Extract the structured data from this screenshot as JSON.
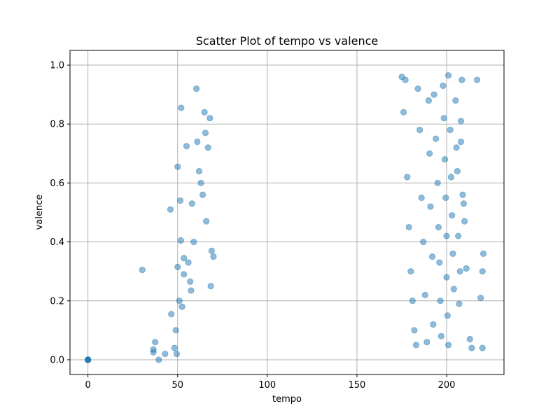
{
  "chart_data": {
    "type": "scatter",
    "title": "Scatter Plot of tempo vs valence",
    "xlabel": "tempo",
    "ylabel": "valence",
    "xlim": [
      -10,
      232
    ],
    "ylim": [
      -0.05,
      1.05
    ],
    "xticks": [
      0,
      50,
      100,
      150,
      200
    ],
    "yticks": [
      0.0,
      0.2,
      0.4,
      0.6,
      0.8,
      1.0
    ],
    "xtick_labels": [
      "0",
      "50",
      "100",
      "150",
      "200"
    ],
    "ytick_labels": [
      "0.0",
      "0.2",
      "0.4",
      "0.6",
      "0.8",
      "1.0"
    ],
    "grid": true,
    "marker_color": "#1f77b4",
    "marker_alpha": 0.5,
    "series": [
      {
        "points": [
          [
            0,
            0
          ],
          [
            0,
            0
          ],
          [
            0,
            0
          ],
          [
            0,
            0
          ],
          [
            0,
            0
          ],
          [
            30.3,
            0.305
          ],
          [
            36.5,
            0.025
          ],
          [
            36.5,
            0.035
          ],
          [
            37.5,
            0.06
          ],
          [
            39.5,
            0
          ],
          [
            43,
            0.02
          ],
          [
            46,
            0.51
          ],
          [
            46.5,
            0.155
          ],
          [
            48.3,
            0.04
          ],
          [
            49,
            0.1
          ],
          [
            49.5,
            0.02
          ],
          [
            50,
            0.315
          ],
          [
            50,
            0.655
          ],
          [
            51,
            0.2
          ],
          [
            51.5,
            0.54
          ],
          [
            51.8,
            0.405
          ],
          [
            52,
            0.855
          ],
          [
            52.5,
            0.18
          ],
          [
            53.5,
            0.29
          ],
          [
            53.5,
            0.345
          ],
          [
            55,
            0.725
          ],
          [
            56,
            0.33
          ],
          [
            57,
            0.265
          ],
          [
            57.5,
            0.235
          ],
          [
            58,
            0.53
          ],
          [
            59,
            0.4
          ],
          [
            60.5,
            0.92
          ],
          [
            61,
            0.74
          ],
          [
            62,
            0.64
          ],
          [
            63,
            0.6
          ],
          [
            64,
            0.56
          ],
          [
            65,
            0.84
          ],
          [
            65.5,
            0.77
          ],
          [
            66,
            0.47
          ],
          [
            67,
            0.72
          ],
          [
            68,
            0.82
          ],
          [
            68.5,
            0.25
          ],
          [
            69,
            0.37
          ],
          [
            70,
            0.35
          ],
          [
            175,
            0.96
          ],
          [
            176,
            0.84
          ],
          [
            177,
            0.95
          ],
          [
            178,
            0.62
          ],
          [
            179,
            0.45
          ],
          [
            180,
            0.3
          ],
          [
            181,
            0.2
          ],
          [
            182,
            0.1
          ],
          [
            183,
            0.05
          ],
          [
            184,
            0.92
          ],
          [
            185,
            0.78
          ],
          [
            186,
            0.55
          ],
          [
            187,
            0.4
          ],
          [
            188,
            0.22
          ],
          [
            189,
            0.06
          ],
          [
            190,
            0.88
          ],
          [
            190.5,
            0.7
          ],
          [
            191,
            0.52
          ],
          [
            192,
            0.35
          ],
          [
            192.5,
            0.12
          ],
          [
            193,
            0.9
          ],
          [
            194,
            0.75
          ],
          [
            195,
            0.6
          ],
          [
            195.5,
            0.45
          ],
          [
            196,
            0.33
          ],
          [
            196.5,
            0.2
          ],
          [
            197,
            0.08
          ],
          [
            198,
            0.93
          ],
          [
            198.5,
            0.82
          ],
          [
            199,
            0.68
          ],
          [
            199.5,
            0.55
          ],
          [
            200,
            0.42
          ],
          [
            200,
            0.28
          ],
          [
            200.5,
            0.15
          ],
          [
            201,
            0.965
          ],
          [
            201,
            0.05
          ],
          [
            202,
            0.78
          ],
          [
            202.5,
            0.62
          ],
          [
            203,
            0.49
          ],
          [
            203.5,
            0.36
          ],
          [
            204,
            0.24
          ],
          [
            205,
            0.88
          ],
          [
            205.5,
            0.72
          ],
          [
            206,
            0.64
          ],
          [
            206.5,
            0.42
          ],
          [
            207,
            0.19
          ],
          [
            207.5,
            0.3
          ],
          [
            208,
            0.81
          ],
          [
            208,
            0.74
          ],
          [
            208.5,
            0.95
          ],
          [
            209,
            0.56
          ],
          [
            209.5,
            0.53
          ],
          [
            210,
            0.47
          ],
          [
            211,
            0.31
          ],
          [
            213,
            0.07
          ],
          [
            214,
            0.04
          ],
          [
            217,
            0.95
          ],
          [
            219,
            0.21
          ],
          [
            220,
            0.04
          ],
          [
            220,
            0.3
          ],
          [
            220.5,
            0.36
          ]
        ]
      }
    ]
  }
}
